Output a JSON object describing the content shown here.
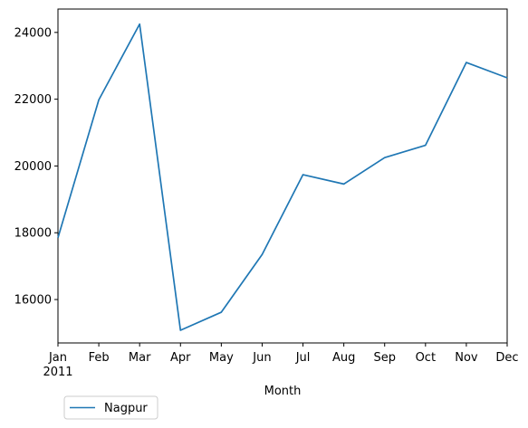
{
  "chart_data": {
    "type": "line",
    "categories": [
      "Jan",
      "Feb",
      "Mar",
      "Apr",
      "May",
      "Jun",
      "Jul",
      "Aug",
      "Sep",
      "Oct",
      "Nov",
      "Dec"
    ],
    "year_label": "2011",
    "series": [
      {
        "name": "Nagpur",
        "color": "#1f77b4",
        "values": [
          17850,
          21980,
          24250,
          15080,
          15620,
          17350,
          19740,
          19460,
          20250,
          20620,
          23100,
          22640
        ]
      }
    ],
    "xlabel": "Month",
    "ylabel": "",
    "ylim": [
      14700,
      24700
    ],
    "yticks": [
      16000,
      18000,
      20000,
      22000,
      24000
    ],
    "ytick_labels": [
      "16000",
      "18000",
      "20000",
      "22000",
      "24000"
    ],
    "grid": false,
    "legend_position": "below-left"
  }
}
